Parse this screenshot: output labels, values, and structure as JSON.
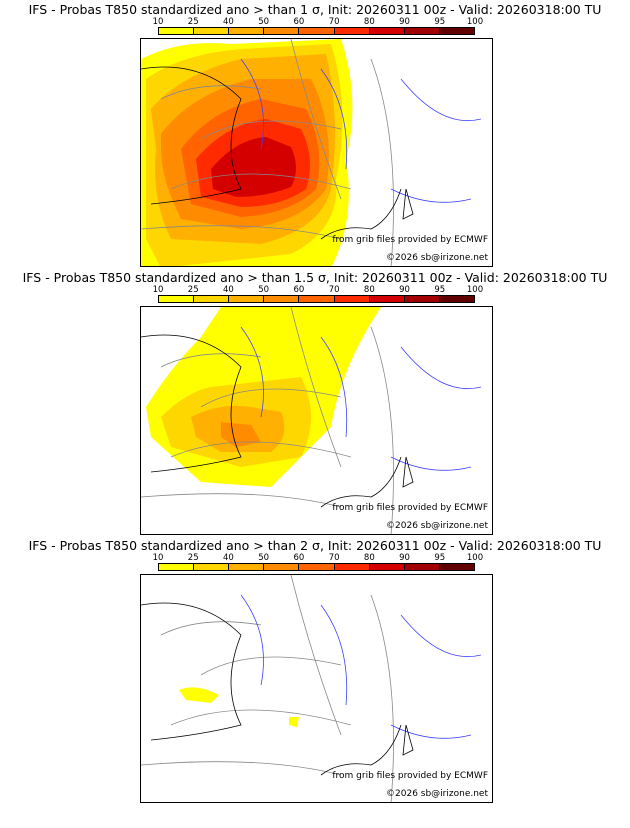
{
  "chart_data": [
    {
      "type": "heatmap",
      "title": "IFS - Probas T850  standardized ano > than 1 σ, Init: 20260311 00z - Valid: 20260318:00 TU",
      "threshold_sigma": 1,
      "colorbar_ticks": [
        "10",
        "25",
        "40",
        "50",
        "60",
        "70",
        "80",
        "90",
        "95",
        "100"
      ],
      "level": "high"
    },
    {
      "type": "heatmap",
      "title": "IFS - Probas T850  standardized ano > than 1.5 σ, Init: 20260311 00z - Valid: 20260318:00 TU",
      "threshold_sigma": 1.5,
      "colorbar_ticks": [
        "10",
        "25",
        "40",
        "50",
        "60",
        "70",
        "80",
        "90",
        "95",
        "100"
      ],
      "level": "medium"
    },
    {
      "type": "heatmap",
      "title": "IFS - Probas T850  standardized ano > than 2 σ, Init: 20260311 00z - Valid: 20260318:00 TU",
      "threshold_sigma": 2,
      "colorbar_ticks": [
        "10",
        "25",
        "40",
        "50",
        "60",
        "70",
        "80",
        "90",
        "95",
        "100"
      ],
      "level": "low"
    }
  ],
  "colors": [
    "#ffff00",
    "#ffd700",
    "#ffb000",
    "#ff8c00",
    "#ff6400",
    "#ff2a00",
    "#d40000",
    "#a00000",
    "#600000"
  ],
  "credit_source": "from grib files provided by ECMWF",
  "credit_copyright": "©2026 sb@irizone.net"
}
